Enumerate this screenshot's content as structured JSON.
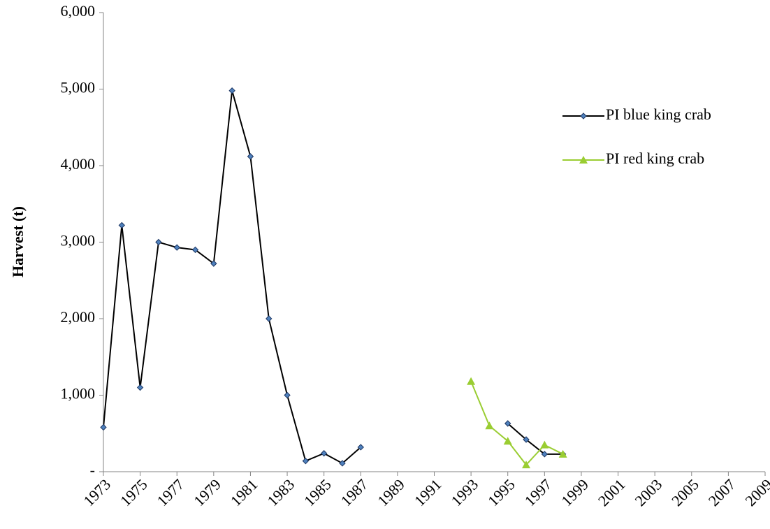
{
  "chart_data": {
    "type": "line",
    "y_label": "Harvest (t)",
    "x": [
      1973,
      1974,
      1975,
      1976,
      1977,
      1978,
      1979,
      1980,
      1981,
      1982,
      1983,
      1984,
      1985,
      1986,
      1987,
      1988,
      1989,
      1990,
      1991,
      1992,
      1993,
      1994,
      1995,
      1996,
      1997,
      1998
    ],
    "series": [
      {
        "name": "PI blue king crab",
        "color": "#000000",
        "marker": "diamond",
        "marker_color": "#4f81bd",
        "values": [
          580,
          3220,
          1100,
          3000,
          2930,
          2900,
          2720,
          4980,
          4120,
          2000,
          1000,
          140,
          240,
          110,
          320,
          null,
          null,
          null,
          null,
          null,
          null,
          null,
          630,
          420,
          230,
          230
        ]
      },
      {
        "name": "PI red king crab",
        "color": "#9acd32",
        "marker": "triangle",
        "marker_color": "#9acd32",
        "values": [
          null,
          null,
          null,
          null,
          null,
          null,
          null,
          null,
          null,
          null,
          null,
          null,
          null,
          null,
          null,
          null,
          null,
          null,
          null,
          null,
          1180,
          600,
          400,
          90,
          350,
          230
        ]
      }
    ],
    "xlim": [
      1973,
      2009
    ],
    "xticks": [
      1973,
      1975,
      1977,
      1979,
      1981,
      1983,
      1985,
      1987,
      1989,
      1991,
      1993,
      1995,
      1997,
      1999,
      2001,
      2003,
      2005,
      2007,
      2009
    ],
    "ylim": [
      0,
      6000
    ],
    "yticks": [
      {
        "value": 0,
        "label": "-"
      },
      {
        "value": 1000,
        "label": "1,000"
      },
      {
        "value": 2000,
        "label": "2,000"
      },
      {
        "value": 3000,
        "label": "3,000"
      },
      {
        "value": 4000,
        "label": "4,000"
      },
      {
        "value": 5000,
        "label": "5,000"
      },
      {
        "value": 6000,
        "label": "6,000"
      }
    ],
    "grid": false
  }
}
